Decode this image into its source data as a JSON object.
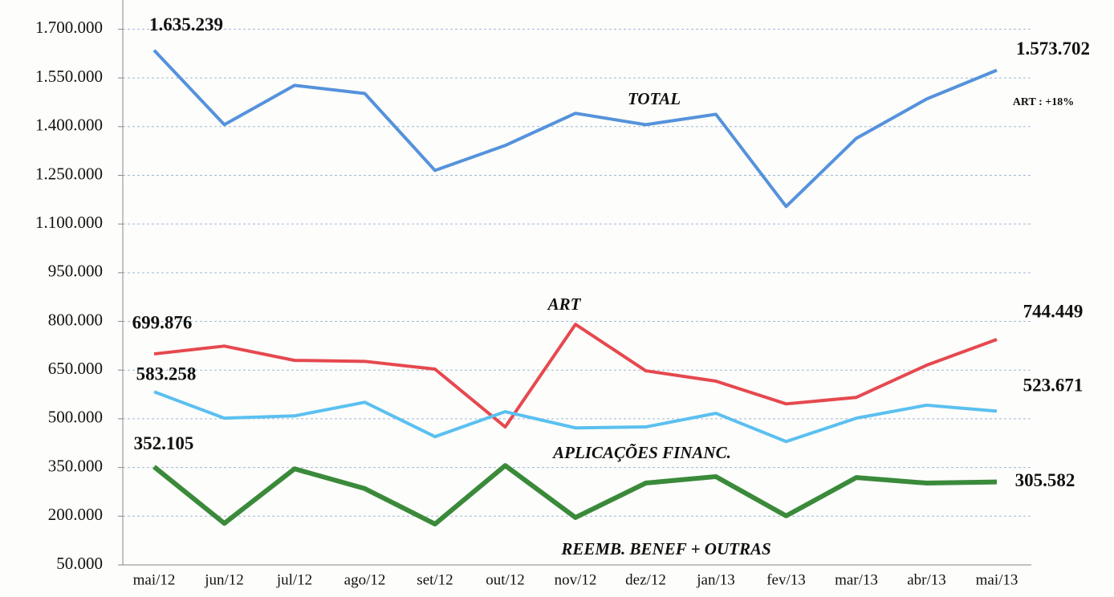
{
  "chart_data": {
    "type": "line",
    "categories": [
      "mai/12",
      "jun/12",
      "jul/12",
      "ago/12",
      "set/12",
      "out/12",
      "nov/12",
      "dez/12",
      "jan/13",
      "fev/13",
      "mar/13",
      "abr/13",
      "mai/13"
    ],
    "ylim": [
      50000,
      1790000
    ],
    "yticks": [
      {
        "value": 50000,
        "label": "50.000"
      },
      {
        "value": 200000,
        "label": "200.000"
      },
      {
        "value": 350000,
        "label": "350.000"
      },
      {
        "value": 500000,
        "label": "500.000"
      },
      {
        "value": 650000,
        "label": "650.000"
      },
      {
        "value": 800000,
        "label": "800.000"
      },
      {
        "value": 950000,
        "label": "950.000"
      },
      {
        "value": 1100000,
        "label": "1.100.000"
      },
      {
        "value": 1250000,
        "label": "1.250.000"
      },
      {
        "value": 1400000,
        "label": "1.400.000"
      },
      {
        "value": 1550000,
        "label": "1.550.000"
      },
      {
        "value": 1700000,
        "label": "1.700.000"
      }
    ],
    "grid": true,
    "annotation": "ART : +18%",
    "series": [
      {
        "name": "TOTAL",
        "color": "#5592dc",
        "values": [
          1635239,
          1406000,
          1527000,
          1502000,
          1265000,
          1342000,
          1441000,
          1406000,
          1438000,
          1154000,
          1364000,
          1485000,
          1573702
        ],
        "value_labels": [
          "1.635.239",
          null,
          null,
          null,
          null,
          null,
          null,
          null,
          null,
          null,
          null,
          null,
          "1.573.702"
        ]
      },
      {
        "name": "ART",
        "color": "#e6484f",
        "values": [
          699876,
          724000,
          680000,
          677000,
          653000,
          475000,
          791000,
          648000,
          616000,
          546000,
          566000,
          665000,
          744449
        ],
        "value_labels": [
          "699.876",
          null,
          null,
          null,
          null,
          null,
          null,
          null,
          null,
          null,
          null,
          null,
          "744.449"
        ]
      },
      {
        "name": "APLICAÇÕES FINANC.",
        "color": "#5bc0f0",
        "values": [
          583258,
          502000,
          509000,
          551000,
          445000,
          522000,
          472000,
          475000,
          517000,
          430000,
          502000,
          542000,
          523671
        ],
        "value_labels": [
          "583.258",
          null,
          null,
          null,
          null,
          null,
          null,
          null,
          null,
          null,
          null,
          null,
          "523.671"
        ]
      },
      {
        "name": "REEMB. BENEF + OUTRAS",
        "color": "#3a8a3a",
        "values": [
          352105,
          178000,
          346000,
          285000,
          176000,
          356000,
          196000,
          302000,
          322000,
          201000,
          319000,
          302000,
          305582
        ],
        "value_labels": [
          "352.105",
          null,
          null,
          null,
          null,
          null,
          null,
          null,
          null,
          null,
          null,
          null,
          "305.582"
        ]
      }
    ]
  }
}
